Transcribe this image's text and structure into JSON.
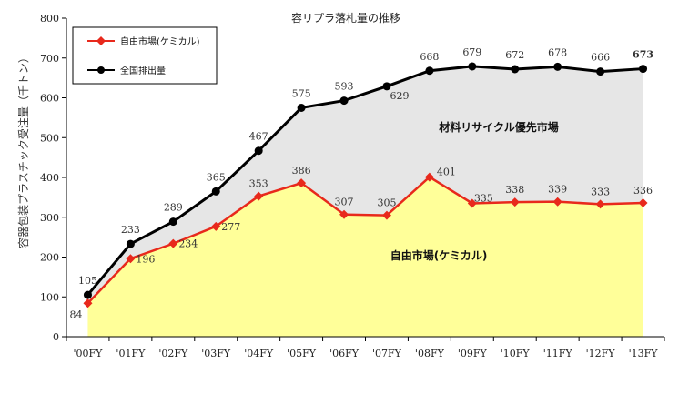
{
  "chart_data": {
    "type": "area",
    "title": "容リプラ落札量の推移",
    "ylabel": "容器包装プラスチック受注量（千トン）",
    "xlabel": "",
    "ylim": [
      0,
      800
    ],
    "yticks": [
      0,
      100,
      200,
      300,
      400,
      500,
      600,
      700,
      800
    ],
    "categories": [
      "'00FY",
      "'01FY",
      "'02FY",
      "'03FY",
      "'04FY",
      "'05FY",
      "'06FY",
      "'07FY",
      "'08FY",
      "'09FY",
      "'10FY",
      "'11FY",
      "'12FY",
      "'13FY"
    ],
    "series": [
      {
        "name": "自由市場(ケミカル)",
        "values": [
          84,
          196,
          234,
          277,
          353,
          386,
          307,
          305,
          401,
          335,
          338,
          339,
          333,
          336
        ],
        "color": "#e8291c",
        "fill": "#ffff99",
        "marker": "diamond"
      },
      {
        "name": "全国排出量",
        "values": [
          105,
          233,
          289,
          365,
          467,
          575,
          593,
          629,
          668,
          679,
          672,
          678,
          666,
          673
        ],
        "color": "#000000",
        "fill": "#e6e6e6",
        "marker": "circle"
      }
    ],
    "annotations": [
      {
        "text": "材料リサイクル優先市場"
      },
      {
        "text": "自由市場(ケミカル)"
      }
    ],
    "legend_position": "top-left",
    "grid": false
  }
}
